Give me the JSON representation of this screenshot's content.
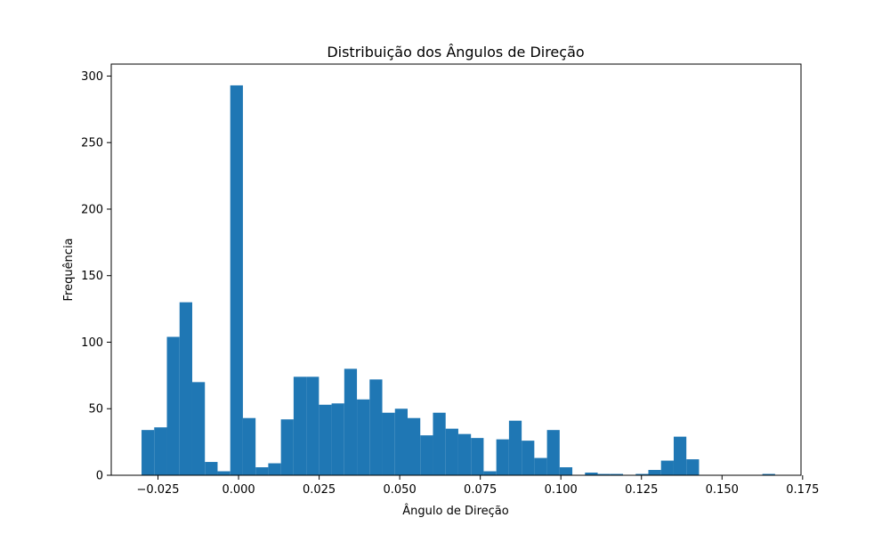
{
  "chart_data": {
    "type": "bar",
    "title": "Distribuição dos Ângulos de Direção",
    "xlabel": "Ângulo de Direção",
    "ylabel": "Frequência",
    "xlim": [
      -0.0395,
      0.1745
    ],
    "ylim": [
      0,
      309
    ],
    "grid": false,
    "color": "#1f77b4",
    "xticks": [
      -0.025,
      0.0,
      0.025,
      0.05,
      0.075,
      0.1,
      0.125,
      0.15,
      0.175
    ],
    "xtick_labels": [
      "−0.025",
      "0.000",
      "0.025",
      "0.050",
      "0.075",
      "0.100",
      "0.125",
      "0.150",
      "0.175"
    ],
    "yticks": [
      0,
      50,
      100,
      150,
      200,
      250,
      300
    ],
    "ytick_labels": [
      "0",
      "50",
      "100",
      "150",
      "200",
      "250",
      "300"
    ],
    "bins": {
      "start": -0.0301,
      "width": 0.003931,
      "counts": [
        34,
        36,
        104,
        130,
        70,
        10,
        3,
        293,
        43,
        6,
        9,
        42,
        74,
        74,
        53,
        54,
        80,
        57,
        72,
        47,
        50,
        43,
        30,
        47,
        35,
        31,
        28,
        3,
        27,
        41,
        26,
        13,
        34,
        6,
        0,
        2,
        1,
        1,
        0,
        1,
        4,
        11,
        29,
        12,
        0,
        0,
        0,
        0,
        0,
        1
      ]
    }
  }
}
